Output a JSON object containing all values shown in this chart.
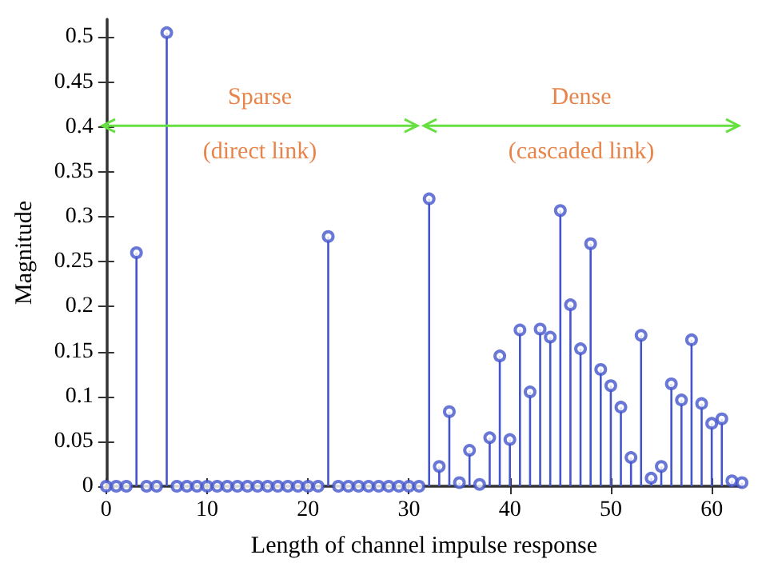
{
  "chart_data": {
    "type": "lollipop",
    "xlabel": "Length of channel impulse response",
    "ylabel": "Magnitude",
    "x": [
      0,
      1,
      2,
      3,
      4,
      5,
      6,
      7,
      8,
      9,
      10,
      11,
      12,
      13,
      14,
      15,
      16,
      17,
      18,
      19,
      20,
      21,
      22,
      23,
      24,
      25,
      26,
      27,
      28,
      29,
      30,
      31,
      32,
      33,
      34,
      35,
      36,
      37,
      38,
      39,
      40,
      41,
      42,
      43,
      44,
      45,
      46,
      47,
      48,
      49,
      50,
      51,
      52,
      53,
      54,
      55,
      56,
      57,
      58,
      59,
      60,
      61,
      62,
      63
    ],
    "series": [
      {
        "color": "#4455cc",
        "values": [
          0,
          0,
          0,
          0.26,
          0,
          0,
          0.505,
          0,
          0,
          0,
          0,
          0,
          0,
          0,
          0,
          0,
          0,
          0,
          0,
          0,
          0,
          0,
          0.278,
          0,
          0,
          0,
          0,
          0,
          0,
          0,
          0,
          0,
          0.32,
          0.022,
          0.083,
          0.004,
          0.04,
          0.002,
          0.054,
          0.145,
          0.052,
          0.174,
          0.105,
          0.175,
          0.166,
          0.307,
          0.202,
          0.153,
          0.27,
          0.13,
          0.112,
          0.088,
          0.032,
          0.168,
          0.009,
          0.022,
          0.114,
          0.096,
          0.163,
          0.092,
          0.07,
          0.075,
          0.006,
          0.004
        ]
      }
    ],
    "xlim": [
      0,
      63
    ],
    "xticks": [
      0,
      10,
      20,
      30,
      40,
      50,
      60
    ],
    "ylim": [
      0,
      0.52
    ],
    "yticks": [
      0,
      0.05,
      0.1,
      0.15,
      0.2,
      0.25,
      0.3,
      0.35,
      0.4,
      0.45,
      0.5
    ],
    "marker": "circle",
    "annotations": [
      "Sparse",
      "(direct link)",
      "Dense",
      "(cascaded link)"
    ]
  }
}
